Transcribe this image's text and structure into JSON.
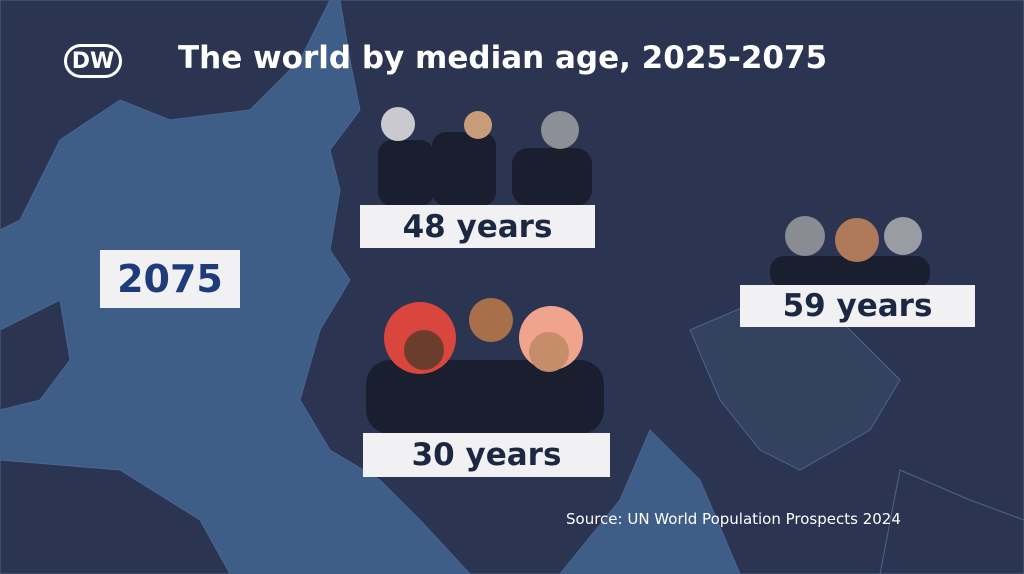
{
  "header": {
    "logo": "DW",
    "title": "The world by median age, 2025-2075"
  },
  "year": "2075",
  "labels": [
    "48 years",
    "59 years",
    "30 years"
  ],
  "source": "Source: UN World Population Prospects 2024"
}
